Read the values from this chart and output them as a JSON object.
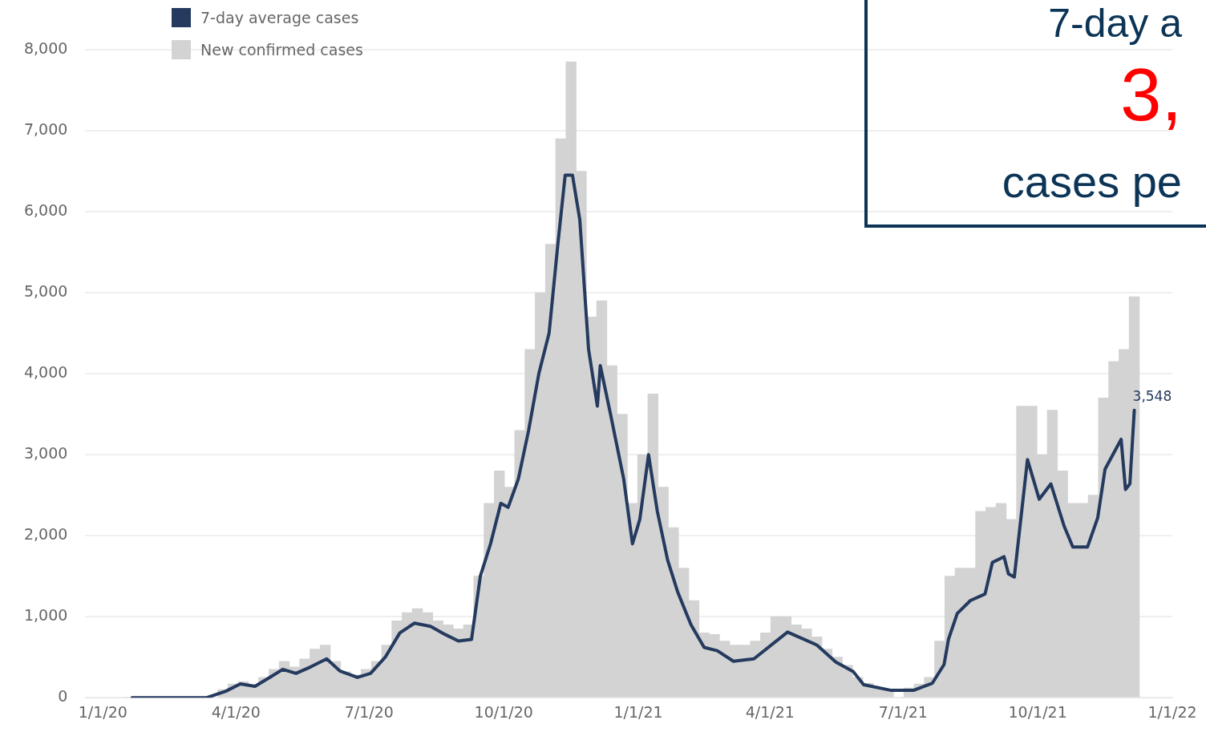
{
  "chart_data": {
    "type": "bar",
    "series": [
      {
        "name": "7-day average cases",
        "type": "line",
        "color": "#243a5e",
        "x": [
          "2020-01-21",
          "2020-03-12",
          "2020-03-25",
          "2020-04-04",
          "2020-04-14",
          "2020-04-24",
          "2020-05-03",
          "2020-05-12",
          "2020-05-22",
          "2020-06-02",
          "2020-06-11",
          "2020-06-23",
          "2020-07-02",
          "2020-07-12",
          "2020-07-22",
          "2020-08-01",
          "2020-08-12",
          "2020-08-22",
          "2020-08-31",
          "2020-09-09",
          "2020-09-15",
          "2020-09-22",
          "2020-09-29",
          "2020-10-04",
          "2020-10-11",
          "2020-10-18",
          "2020-10-25",
          "2020-11-01",
          "2020-11-07",
          "2020-11-12",
          "2020-11-17",
          "2020-11-22",
          "2020-11-28",
          "2020-12-04",
          "2020-12-06",
          "2020-12-13",
          "2020-12-22",
          "2020-12-28",
          "2021-01-02",
          "2021-01-08",
          "2021-01-14",
          "2021-01-21",
          "2021-01-28",
          "2021-02-06",
          "2021-02-15",
          "2021-02-24",
          "2021-03-07",
          "2021-03-21",
          "2021-04-13",
          "2021-05-03",
          "2021-05-16",
          "2021-05-28",
          "2021-06-04",
          "2021-06-23",
          "2021-07-08",
          "2021-07-21",
          "2021-07-29",
          "2021-08-01",
          "2021-08-07",
          "2021-08-16",
          "2021-08-26",
          "2021-08-31",
          "2021-09-08",
          "2021-09-11",
          "2021-09-15",
          "2021-09-24",
          "2021-10-02",
          "2021-10-10",
          "2021-10-19",
          "2021-10-25",
          "2021-11-04",
          "2021-11-11",
          "2021-11-16",
          "2021-11-27",
          "2021-11-30",
          "2021-12-03",
          "2021-12-06"
        ],
        "values": [
          0,
          0,
          80,
          170,
          140,
          250,
          350,
          300,
          380,
          480,
          330,
          250,
          300,
          500,
          800,
          920,
          880,
          780,
          700,
          720,
          1500,
          1900,
          2400,
          2350,
          2700,
          3300,
          4000,
          4500,
          5600,
          6450,
          6450,
          5900,
          4300,
          3600,
          4100,
          3500,
          2700,
          1900,
          2200,
          3000,
          2300,
          1700,
          1300,
          900,
          620,
          580,
          450,
          480,
          810,
          650,
          440,
          320,
          160,
          90,
          90,
          180,
          410,
          720,
          1040,
          1200,
          1280,
          1670,
          1740,
          1530,
          1490,
          2940,
          2450,
          2640,
          2120,
          1860,
          1860,
          2220,
          2820,
          3190,
          2570,
          2640,
          3548
        ],
        "value_labels": [
          null,
          null,
          null,
          null,
          null,
          null,
          null,
          null,
          null,
          null,
          null,
          null,
          null,
          null,
          null,
          null,
          null,
          null,
          null,
          null,
          null,
          null,
          null,
          null,
          null,
          null,
          null,
          null,
          null,
          null,
          null,
          null,
          null,
          null,
          null,
          null,
          null,
          null,
          null,
          null,
          null,
          null,
          null,
          null,
          null,
          null,
          null,
          null,
          null,
          null,
          null,
          null,
          null,
          null,
          null,
          null,
          null,
          null,
          null,
          null,
          null,
          null,
          null,
          null,
          null,
          null,
          null,
          null,
          null,
          null,
          null,
          null,
          null,
          null,
          null,
          null,
          "3,548"
        ]
      },
      {
        "name": "New confirmed cases",
        "color": "#d3d3d3",
        "x": [
          "2020-01-20",
          "2020-01-27",
          "2020-02-03",
          "2020-02-10",
          "2020-02-17",
          "2020-02-24",
          "2020-03-02",
          "2020-03-09",
          "2020-03-16",
          "2020-03-23",
          "2020-03-30",
          "2020-04-06",
          "2020-04-13",
          "2020-04-20",
          "2020-04-27",
          "2020-05-04",
          "2020-05-11",
          "2020-05-18",
          "2020-05-25",
          "2020-06-01",
          "2020-06-08",
          "2020-06-15",
          "2020-06-22",
          "2020-06-29",
          "2020-07-06",
          "2020-07-13",
          "2020-07-20",
          "2020-07-27",
          "2020-08-03",
          "2020-08-10",
          "2020-08-17",
          "2020-08-24",
          "2020-08-31",
          "2020-09-07",
          "2020-09-14",
          "2020-09-21",
          "2020-09-28",
          "2020-10-05",
          "2020-10-12",
          "2020-10-19",
          "2020-10-26",
          "2020-11-02",
          "2020-11-09",
          "2020-11-16",
          "2020-11-23",
          "2020-11-30",
          "2020-12-07",
          "2020-12-14",
          "2020-12-21",
          "2020-12-28",
          "2021-01-04",
          "2021-01-11",
          "2021-01-18",
          "2021-01-25",
          "2021-02-01",
          "2021-02-08",
          "2021-02-15",
          "2021-02-22",
          "2021-03-01",
          "2021-03-08",
          "2021-03-15",
          "2021-03-22",
          "2021-03-29",
          "2021-04-05",
          "2021-04-12",
          "2021-04-19",
          "2021-04-26",
          "2021-05-03",
          "2021-05-10",
          "2021-05-17",
          "2021-05-24",
          "2021-05-31",
          "2021-06-07",
          "2021-06-14",
          "2021-06-21",
          "2021-06-28",
          "2021-07-05",
          "2021-07-12",
          "2021-07-19",
          "2021-07-26",
          "2021-08-02",
          "2021-08-09",
          "2021-08-16",
          "2021-08-23",
          "2021-08-30",
          "2021-09-06",
          "2021-09-13",
          "2021-09-20",
          "2021-09-27",
          "2021-10-04",
          "2021-10-11",
          "2021-10-18",
          "2021-10-25",
          "2021-11-01",
          "2021-11-08",
          "2021-11-15",
          "2021-11-22",
          "2021-11-29",
          "2021-12-06"
        ],
        "values": [
          0,
          0,
          0,
          0,
          0,
          0,
          0,
          0,
          null,
          100,
          170,
          200,
          160,
          250,
          350,
          450,
          380,
          480,
          600,
          650,
          450,
          320,
          280,
          350,
          450,
          650,
          950,
          1050,
          1100,
          1050,
          950,
          900,
          850,
          900,
          1500,
          2400,
          2800,
          2600,
          3300,
          4300,
          5000,
          5600,
          6900,
          7850,
          6500,
          4700,
          4900,
          4100,
          3500,
          2400,
          3000,
          3750,
          2600,
          2100,
          1600,
          1200,
          800,
          780,
          700,
          650,
          650,
          700,
          800,
          1000,
          1000,
          900,
          850,
          750,
          600,
          500,
          400,
          250,
          180,
          120,
          100,
          null,
          120,
          170,
          250,
          700,
          1500,
          1600,
          1600,
          2300,
          2350,
          2400,
          2200,
          3600,
          3600,
          3000,
          3550,
          2800,
          2400,
          2400,
          2500,
          3700,
          4150,
          4300,
          4950
        ]
      }
    ],
    "xlim": [
      "2019-12-20",
      "2022-01-01"
    ],
    "xticks": [
      {
        "value": "2020-01-01",
        "label": "1/1/20"
      },
      {
        "value": "2020-04-01",
        "label": "4/1/20"
      },
      {
        "value": "2020-07-01",
        "label": "7/1/20"
      },
      {
        "value": "2020-10-01",
        "label": "10/1/20"
      },
      {
        "value": "2021-01-01",
        "label": "1/1/21"
      },
      {
        "value": "2021-04-01",
        "label": "4/1/21"
      },
      {
        "value": "2021-07-01",
        "label": "7/1/21"
      },
      {
        "value": "2021-10-01",
        "label": "10/1/21"
      },
      {
        "value": "2022-01-01",
        "label": "1/1/22"
      }
    ],
    "ylim": [
      0,
      8000
    ],
    "yticks": [
      0,
      {
        "value": 1000,
        "label": "1,000"
      },
      {
        "value": 2000,
        "label": "2,000"
      },
      {
        "value": 3000,
        "label": "3,000"
      },
      {
        "value": 4000,
        "label": "4,000"
      },
      {
        "value": 5000,
        "label": "5,000"
      },
      {
        "value": 6000,
        "label": "6,000"
      },
      {
        "value": 7000,
        "label": "7,000"
      },
      {
        "value": 8000,
        "label": "8,000"
      }
    ],
    "grid": "y",
    "legend": "top left",
    "annotations": [
      "7-day a",
      "3,",
      "cases pe"
    ]
  }
}
